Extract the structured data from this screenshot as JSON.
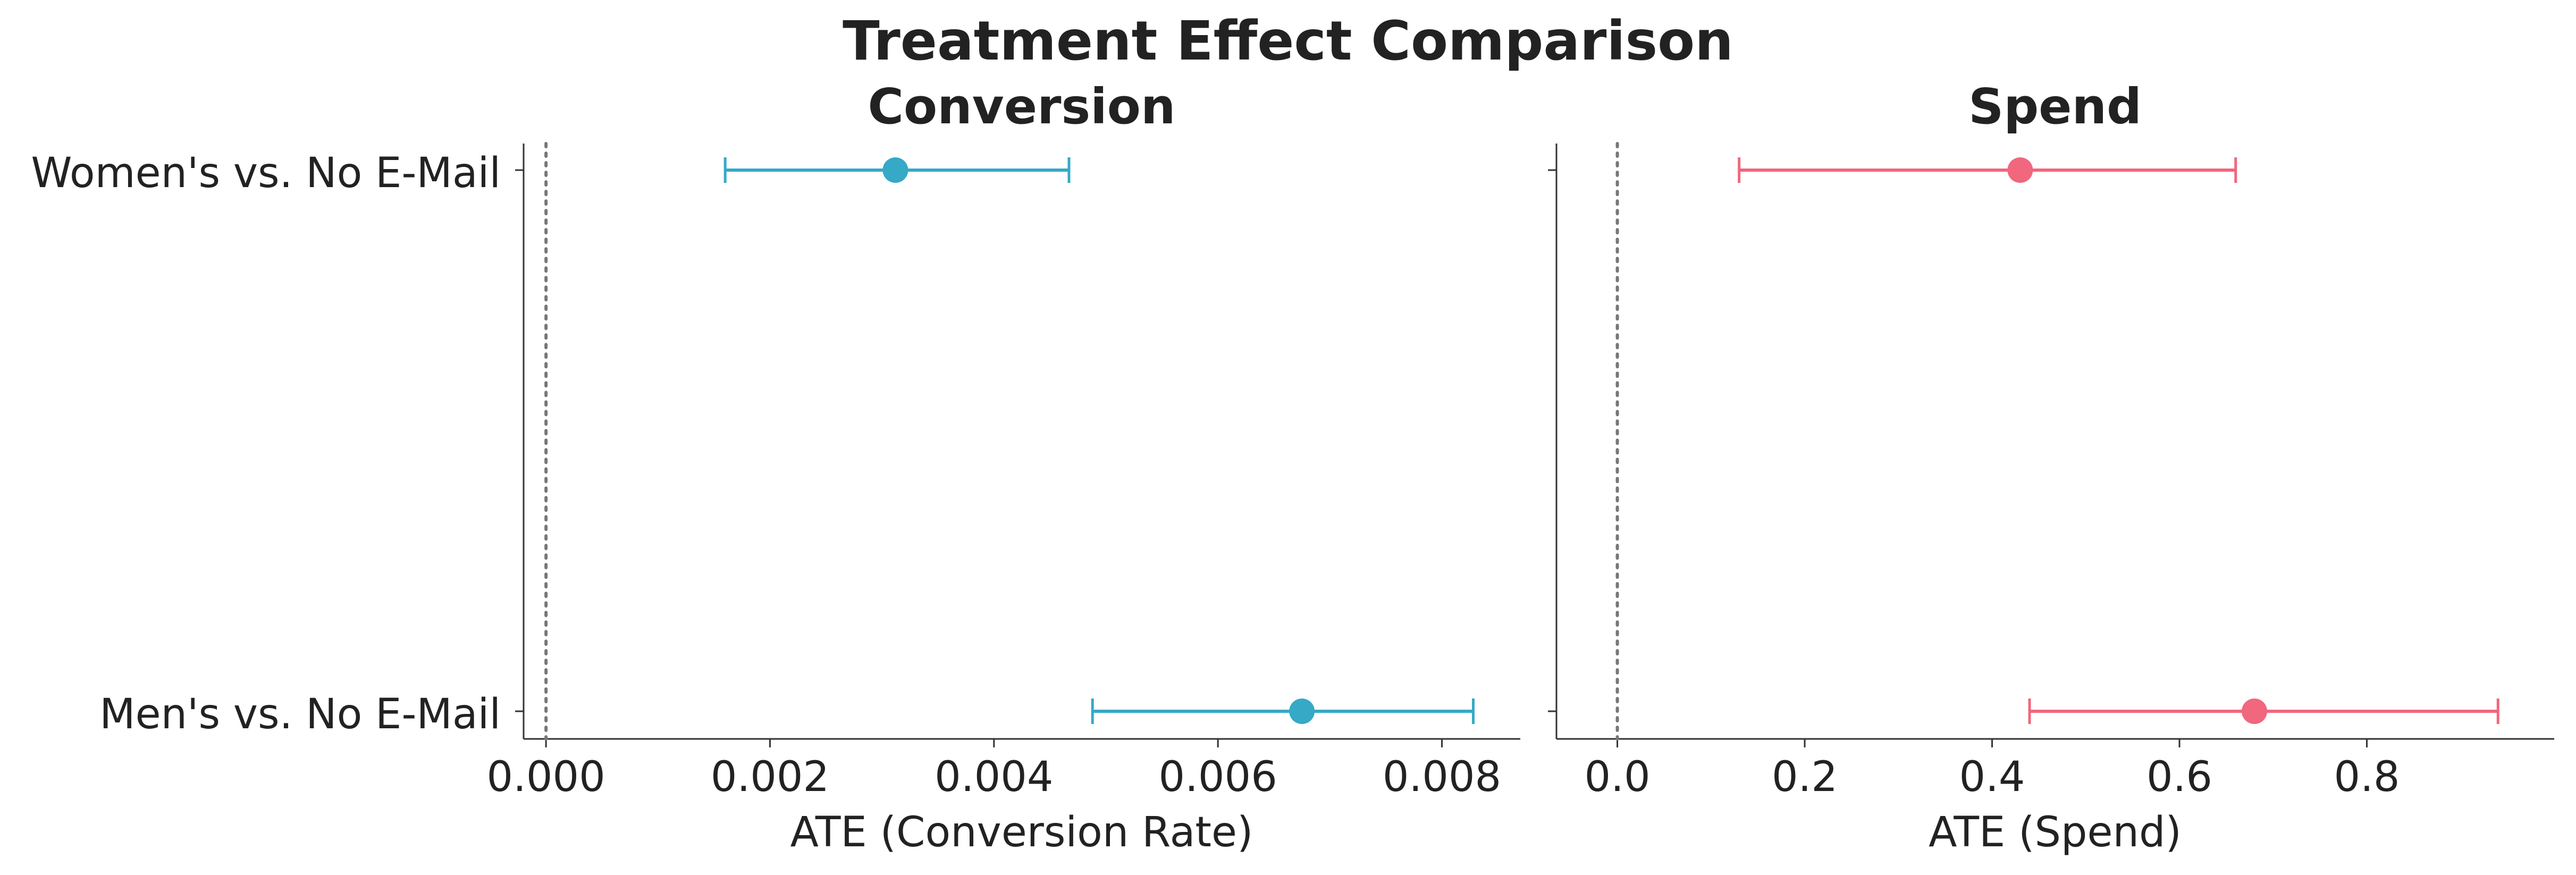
{
  "figure": {
    "title": "Treatment Effect Comparison"
  },
  "chart_data": [
    {
      "type": "scatter",
      "title": "Conversion",
      "xlabel": "ATE (Conversion Rate)",
      "ylabel": "",
      "categories": [
        "Women's vs. No E-Mail",
        "Men's vs. No E-Mail"
      ],
      "series": [
        {
          "color": "#35a9c6",
          "points": [
            {
              "category": "Women's vs. No E-Mail",
              "ate": 0.00312,
              "ci_low": 0.0016,
              "ci_high": 0.00467
            },
            {
              "category": "Men's vs. No E-Mail",
              "ate": 0.00675,
              "ci_low": 0.00488,
              "ci_high": 0.00828
            }
          ]
        }
      ],
      "xlim": [
        -0.0002,
        0.0087
      ],
      "xticks": [
        0.0,
        0.002,
        0.004,
        0.006,
        0.008
      ],
      "xtick_labels": [
        "0.000",
        "0.002",
        "0.004",
        "0.006",
        "0.008"
      ],
      "reference_line": {
        "x": 0,
        "style": "dotted"
      },
      "grid": false
    },
    {
      "type": "scatter",
      "title": "Spend",
      "xlabel": "ATE (Spend)",
      "ylabel": "",
      "categories": [
        "Women's vs. No E-Mail",
        "Men's vs. No E-Mail"
      ],
      "series": [
        {
          "color": "#f0677e",
          "points": [
            {
              "category": "Women's vs. No E-Mail",
              "ate": 0.43,
              "ci_low": 0.13,
              "ci_high": 0.66
            },
            {
              "category": "Men's vs. No E-Mail",
              "ate": 0.68,
              "ci_low": 0.44,
              "ci_high": 0.94
            }
          ]
        }
      ],
      "xlim": [
        -0.065,
        1.0
      ],
      "xticks": [
        0.0,
        0.2,
        0.4,
        0.6,
        0.8
      ],
      "xtick_labels": [
        "0.0",
        "0.2",
        "0.4",
        "0.6",
        "0.8"
      ],
      "reference_line": {
        "x": 0,
        "style": "dotted"
      },
      "grid": false
    }
  ]
}
